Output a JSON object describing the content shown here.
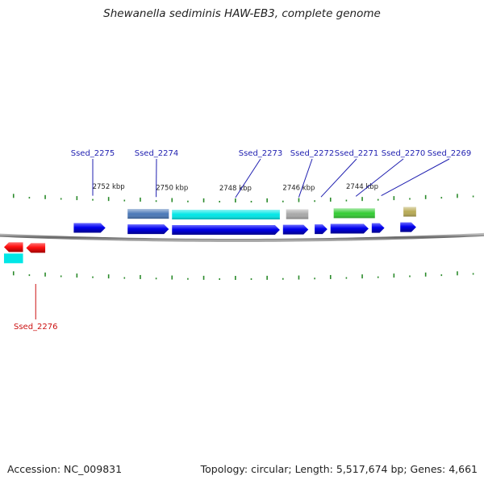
{
  "title": "Shewanella sediminis HAW-EB3, complete genome",
  "accession_text": "Accession: NC_009831",
  "topology_text": "Topology: circular; Length: 5,517,674 bp; Genes: 4,661",
  "colors": {
    "cds": "#0000ee",
    "cds_highlight": "#ff1111",
    "tick": "#2a8a2a",
    "backbone": "#777777",
    "gene_label": "#1f1fb0",
    "gene_label_highlight": "#cc1111"
  },
  "scale": {
    "unit": "kbp",
    "labels": [
      "2752 kbp",
      "2750 kbp",
      "2748 kbp",
      "2746 kbp",
      "2744 kbp"
    ]
  },
  "cds_forward": [
    {
      "start": 2753.1,
      "end": 2752.1
    },
    {
      "start": 2751.4,
      "end": 2750.1
    },
    {
      "start": 2750.0,
      "end": 2746.6
    },
    {
      "start": 2746.5,
      "end": 2745.7
    },
    {
      "start": 2745.5,
      "end": 2745.1
    },
    {
      "start": 2745.0,
      "end": 2743.8
    },
    {
      "start": 2743.7,
      "end": 2743.3
    },
    {
      "start": 2742.8,
      "end": 2742.3
    }
  ],
  "cds_reverse": [
    {
      "start": 2754.6,
      "end": 2754.0,
      "highlight": true
    },
    {
      "start": 2755.3,
      "end": 2754.7,
      "highlight": true
    }
  ],
  "annotation_bands": [
    {
      "start": 2751.4,
      "end": 2750.1,
      "color": "#4a78b8"
    },
    {
      "start": 2750.0,
      "end": 2746.6,
      "color": "#00e6e6"
    },
    {
      "start": 2746.4,
      "end": 2745.7,
      "color": "#a8a8a8"
    },
    {
      "start": 2744.9,
      "end": 2743.6,
      "color": "#33cc33"
    },
    {
      "start": 2742.7,
      "end": 2742.3,
      "color": "#b8aa55"
    }
  ],
  "reverse_bands": [
    {
      "start": 2755.3,
      "end": 2754.7,
      "color": "#00e6e6"
    }
  ],
  "gene_labels": [
    {
      "text": "Ssed_2275",
      "pos": 2752.5,
      "strand": "top",
      "highlight": false
    },
    {
      "text": "Ssed_2274",
      "pos": 2750.5,
      "strand": "top",
      "highlight": false
    },
    {
      "text": "Ssed_2273",
      "pos": 2748.0,
      "strand": "top",
      "highlight": false
    },
    {
      "text": "Ssed_2272",
      "pos": 2746.0,
      "strand": "top",
      "highlight": false
    },
    {
      "text": "Ssed_2271",
      "pos": 2745.3,
      "strand": "top",
      "highlight": false
    },
    {
      "text": "Ssed_2270",
      "pos": 2744.2,
      "strand": "top",
      "highlight": false
    },
    {
      "text": "Ssed_2269",
      "pos": 2743.4,
      "strand": "top",
      "highlight": false
    },
    {
      "text": "Ssed_2276",
      "pos": 2754.3,
      "strand": "bottom",
      "highlight": true
    }
  ]
}
